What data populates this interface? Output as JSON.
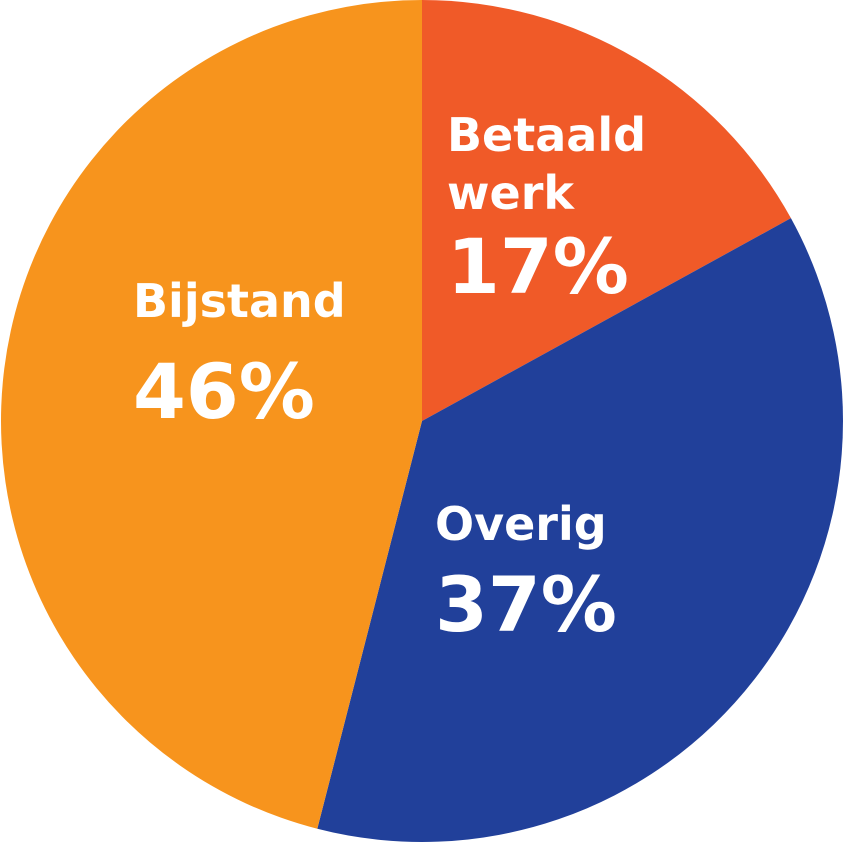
{
  "chart_data": {
    "type": "pie",
    "categories": [
      "Betaald werk",
      "Overig",
      "Bijstand"
    ],
    "values": [
      17,
      37,
      46
    ],
    "value_labels": [
      "17%",
      "37%",
      "46%"
    ],
    "colors": [
      "#f05a28",
      "#21409a",
      "#f7941d"
    ]
  }
}
